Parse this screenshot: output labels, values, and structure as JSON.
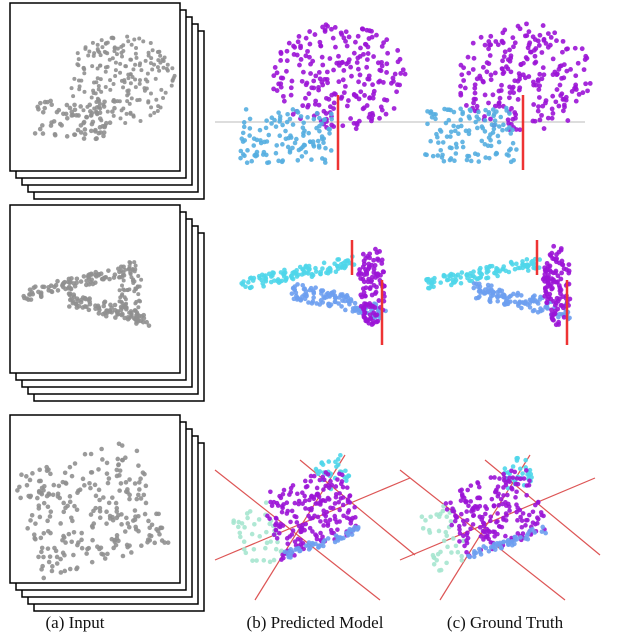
{
  "captions": [
    "(a) Input",
    "(b) Predicted Model",
    "(c) Ground Truth"
  ]
}
